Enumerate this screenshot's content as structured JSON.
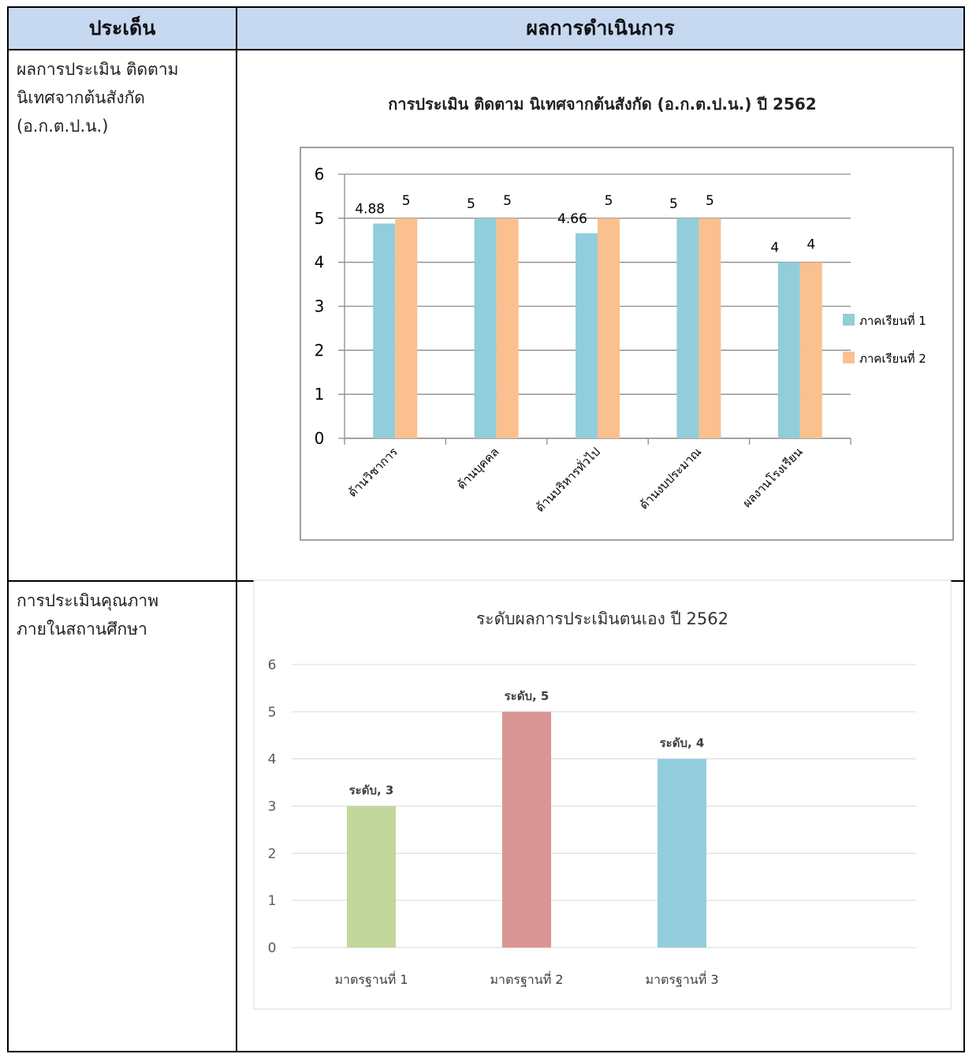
{
  "header": {
    "col1": "ประเด็น",
    "col2": "ผลการดำเนินการ"
  },
  "rows": [
    {
      "label_lines": [
        "ผลการประเมิน ติดตาม",
        "นิเทศจากต้นสังกัด",
        "(อ.ก.ต.ป.น.)"
      ]
    },
    {
      "label_lines": [
        "การประเมินคุณภาพ",
        "ภายในสถานศึกษา"
      ]
    }
  ],
  "chart_data": [
    {
      "type": "bar",
      "title": "การประเมิน ติดตาม นิเทศจากต้นสังกัด (อ.ก.ต.ป.น.) ปี 2562",
      "categories": [
        "ด้านวิชาการ",
        "ด้านบุคคล",
        "ด้านบริหารทั่วไป",
        "ด้านงบประมาณ",
        "ผลงานโรงเรียน"
      ],
      "series": [
        {
          "name": "ภาคเรียนที่ 1",
          "values": [
            4.88,
            5,
            4.66,
            5,
            4
          ],
          "color": "#92cddc"
        },
        {
          "name": "ภาคเรียนที่ 2",
          "values": [
            5,
            5,
            5,
            5,
            4
          ],
          "color": "#fac08f"
        }
      ],
      "ylim": [
        0,
        6
      ],
      "yticks": [
        "0",
        "1",
        "2",
        "3",
        "4",
        "5",
        "6"
      ],
      "grid": true,
      "legend": "right"
    },
    {
      "type": "bar",
      "title": "ระดับผลการประเมินตนเอง ปี 2562",
      "categories": [
        "มาตรฐานที่ 1",
        "มาตรฐานที่ 2",
        "มาตรฐานที่ 3"
      ],
      "values": [
        3,
        5,
        4
      ],
      "data_labels": [
        "ระดับ, 3",
        "ระดับ, 5",
        "ระดับ, 4"
      ],
      "colors": [
        "#c3d69b",
        "#d99694",
        "#93cddd"
      ],
      "ylim": [
        0,
        6
      ],
      "yticks": [
        "0",
        "1",
        "2",
        "3",
        "4",
        "5",
        "6"
      ],
      "grid": true,
      "legend": "none"
    }
  ]
}
